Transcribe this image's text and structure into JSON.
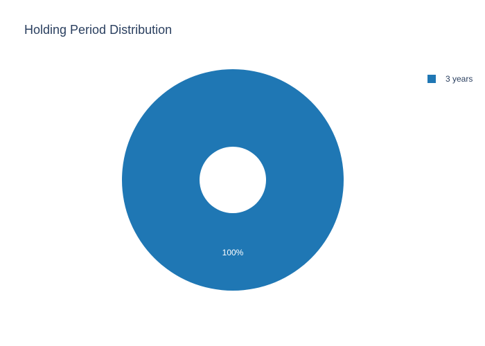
{
  "chart_data": {
    "type": "pie",
    "title": "Holding Period Distribution",
    "categories": [
      "3 years"
    ],
    "values": [
      100
    ],
    "value_labels": [
      "100%"
    ],
    "colors": [
      "#1f77b4"
    ],
    "legend": "top-right"
  }
}
